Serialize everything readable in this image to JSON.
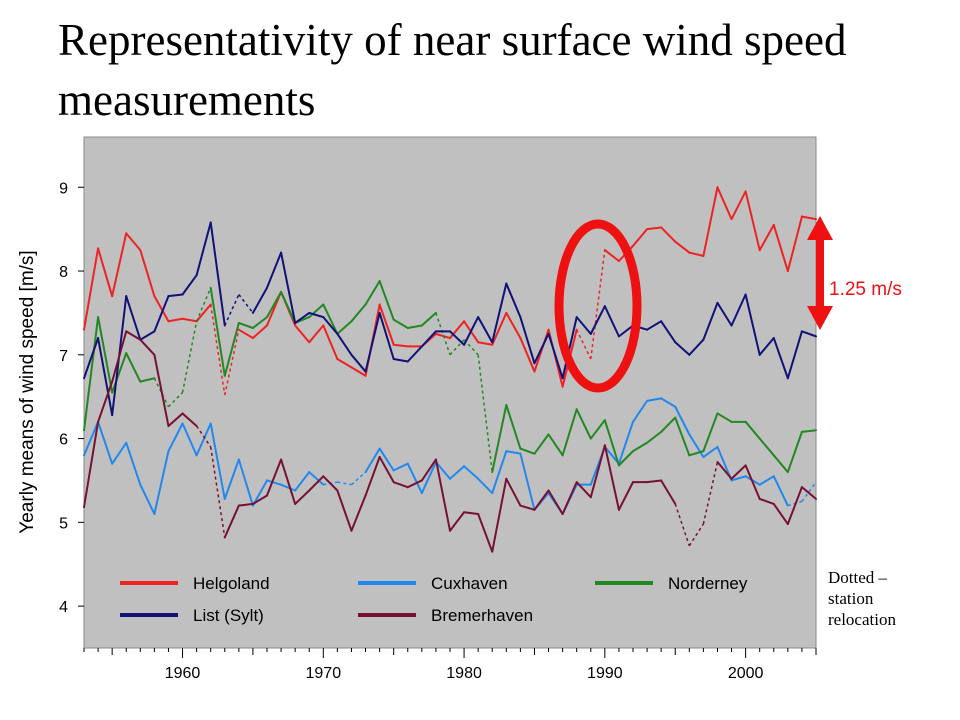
{
  "title": "Representativity of near surface wind speed measurements",
  "annotation": {
    "label": "1.25 m/s",
    "color": "#ee1111"
  },
  "note_lines": [
    "Dotted –",
    "station",
    "relocation"
  ],
  "chart_data": {
    "type": "line",
    "ylabel": "Yearly means of wind speed [m/s]",
    "xlabel": "",
    "xlim": [
      1953,
      2005
    ],
    "ylim": [
      3.5,
      9.6
    ],
    "xticks": [
      1960,
      1970,
      1980,
      1990,
      2000
    ],
    "yticks": [
      4,
      5,
      6,
      7,
      8,
      9
    ],
    "grid": false,
    "legend_position": "bottom",
    "background": "#c0c0c0",
    "x": [
      1953,
      1954,
      1955,
      1956,
      1957,
      1958,
      1959,
      1960,
      1961,
      1962,
      1963,
      1964,
      1965,
      1966,
      1967,
      1968,
      1969,
      1970,
      1971,
      1972,
      1973,
      1974,
      1975,
      1976,
      1977,
      1978,
      1979,
      1980,
      1981,
      1982,
      1983,
      1984,
      1985,
      1986,
      1987,
      1988,
      1989,
      1990,
      1991,
      1992,
      1993,
      1994,
      1995,
      1996,
      1997,
      1998,
      1999,
      2000,
      2001,
      2002,
      2003,
      2004,
      2005
    ],
    "series": [
      {
        "name": "Helgoland",
        "color": "#ee2222",
        "values": [
          7.3,
          8.27,
          7.7,
          8.45,
          8.25,
          7.7,
          7.4,
          7.43,
          7.4,
          7.6,
          6.52,
          7.3,
          7.2,
          7.35,
          7.75,
          7.35,
          7.15,
          7.35,
          6.95,
          6.85,
          6.75,
          7.6,
          7.12,
          7.1,
          7.1,
          7.25,
          7.2,
          7.4,
          7.15,
          7.12,
          7.5,
          7.2,
          6.8,
          7.3,
          6.62,
          7.3,
          6.95,
          8.25,
          8.12,
          8.3,
          8.5,
          8.52,
          8.35,
          8.22,
          8.18,
          9.0,
          8.62,
          8.95,
          8.25,
          8.55,
          8.0,
          8.65,
          8.62
        ],
        "dotted_segments": [
          [
            1962,
            1963
          ],
          [
            1963,
            1964
          ],
          [
            1988,
            1989
          ],
          [
            1989,
            1990
          ]
        ]
      },
      {
        "name": "Cuxhaven",
        "color": "#2288ee",
        "values": [
          5.8,
          6.2,
          5.7,
          5.95,
          5.45,
          5.1,
          5.85,
          6.18,
          5.8,
          6.18,
          5.28,
          5.75,
          5.2,
          5.5,
          5.45,
          5.38,
          5.6,
          5.45,
          5.48,
          5.45,
          5.6,
          5.88,
          5.62,
          5.7,
          5.35,
          5.72,
          5.52,
          5.67,
          5.52,
          5.35,
          5.85,
          5.82,
          5.15,
          5.35,
          5.1,
          5.45,
          5.45,
          5.9,
          5.7,
          6.2,
          6.45,
          6.48,
          6.38,
          6.05,
          5.78,
          5.9,
          5.5,
          5.55,
          5.45,
          5.55,
          5.2,
          5.25,
          5.48
        ],
        "dotted_segments": [
          [
            1970,
            1971
          ],
          [
            1971,
            1972
          ],
          [
            1972,
            1973
          ],
          [
            2003,
            2004
          ],
          [
            2004,
            2005
          ]
        ]
      },
      {
        "name": "Norderney",
        "color": "#228822",
        "values": [
          6.1,
          7.45,
          6.55,
          7.02,
          6.68,
          6.72,
          6.38,
          6.55,
          7.4,
          7.8,
          6.75,
          7.38,
          7.32,
          7.45,
          7.75,
          7.38,
          7.45,
          7.6,
          7.25,
          7.4,
          7.6,
          7.88,
          7.42,
          7.32,
          7.35,
          7.5,
          7.0,
          7.18,
          7.0,
          5.6,
          6.4,
          5.88,
          5.82,
          6.05,
          5.8,
          6.35,
          6.0,
          6.22,
          5.68,
          5.85,
          5.95,
          6.08,
          6.25,
          5.8,
          5.85,
          6.3,
          6.2,
          6.2,
          6.0,
          5.8,
          5.6,
          6.08,
          6.1
        ],
        "dotted_segments": [
          [
            1958,
            1959
          ],
          [
            1959,
            1960
          ],
          [
            1960,
            1961
          ],
          [
            1961,
            1962
          ],
          [
            1978,
            1979
          ],
          [
            1979,
            1980
          ],
          [
            1980,
            1981
          ],
          [
            1981,
            1982
          ]
        ]
      },
      {
        "name": "List (Sylt)",
        "color": "#111177",
        "values": [
          6.72,
          7.2,
          6.28,
          7.7,
          7.18,
          7.28,
          7.7,
          7.72,
          7.95,
          8.58,
          7.35,
          7.72,
          7.5,
          7.8,
          8.22,
          7.38,
          7.5,
          7.45,
          7.25,
          7.0,
          6.8,
          7.5,
          6.95,
          6.92,
          7.1,
          7.28,
          7.28,
          7.12,
          7.45,
          7.15,
          7.85,
          7.45,
          6.9,
          7.25,
          6.72,
          7.45,
          7.25,
          7.58,
          7.22,
          7.35,
          7.3,
          7.4,
          7.15,
          7.0,
          7.18,
          7.62,
          7.35,
          7.72,
          7.0,
          7.2,
          6.72,
          7.28,
          7.22
        ],
        "dotted_segments": [
          [
            1963,
            1964
          ],
          [
            1964,
            1965
          ]
        ]
      },
      {
        "name": "Bremerhaven",
        "color": "#771133",
        "values": [
          5.18,
          6.2,
          6.68,
          7.28,
          7.18,
          7.0,
          6.15,
          6.3,
          6.15,
          5.9,
          4.82,
          5.2,
          5.22,
          5.32,
          5.75,
          5.22,
          5.38,
          5.55,
          5.38,
          4.9,
          5.32,
          5.78,
          5.48,
          5.42,
          5.5,
          5.75,
          4.9,
          5.12,
          5.1,
          4.65,
          5.52,
          5.2,
          5.15,
          5.38,
          5.1,
          5.48,
          5.3,
          5.92,
          5.15,
          5.48,
          5.48,
          5.5,
          5.22,
          4.72,
          4.98,
          5.72,
          5.52,
          5.68,
          5.28,
          5.22,
          4.98,
          5.42,
          5.28
        ],
        "dotted_segments": [
          [
            1961,
            1962
          ],
          [
            1962,
            1963
          ],
          [
            1995,
            1996
          ],
          [
            1996,
            1997
          ],
          [
            1997,
            1998
          ]
        ]
      }
    ]
  }
}
